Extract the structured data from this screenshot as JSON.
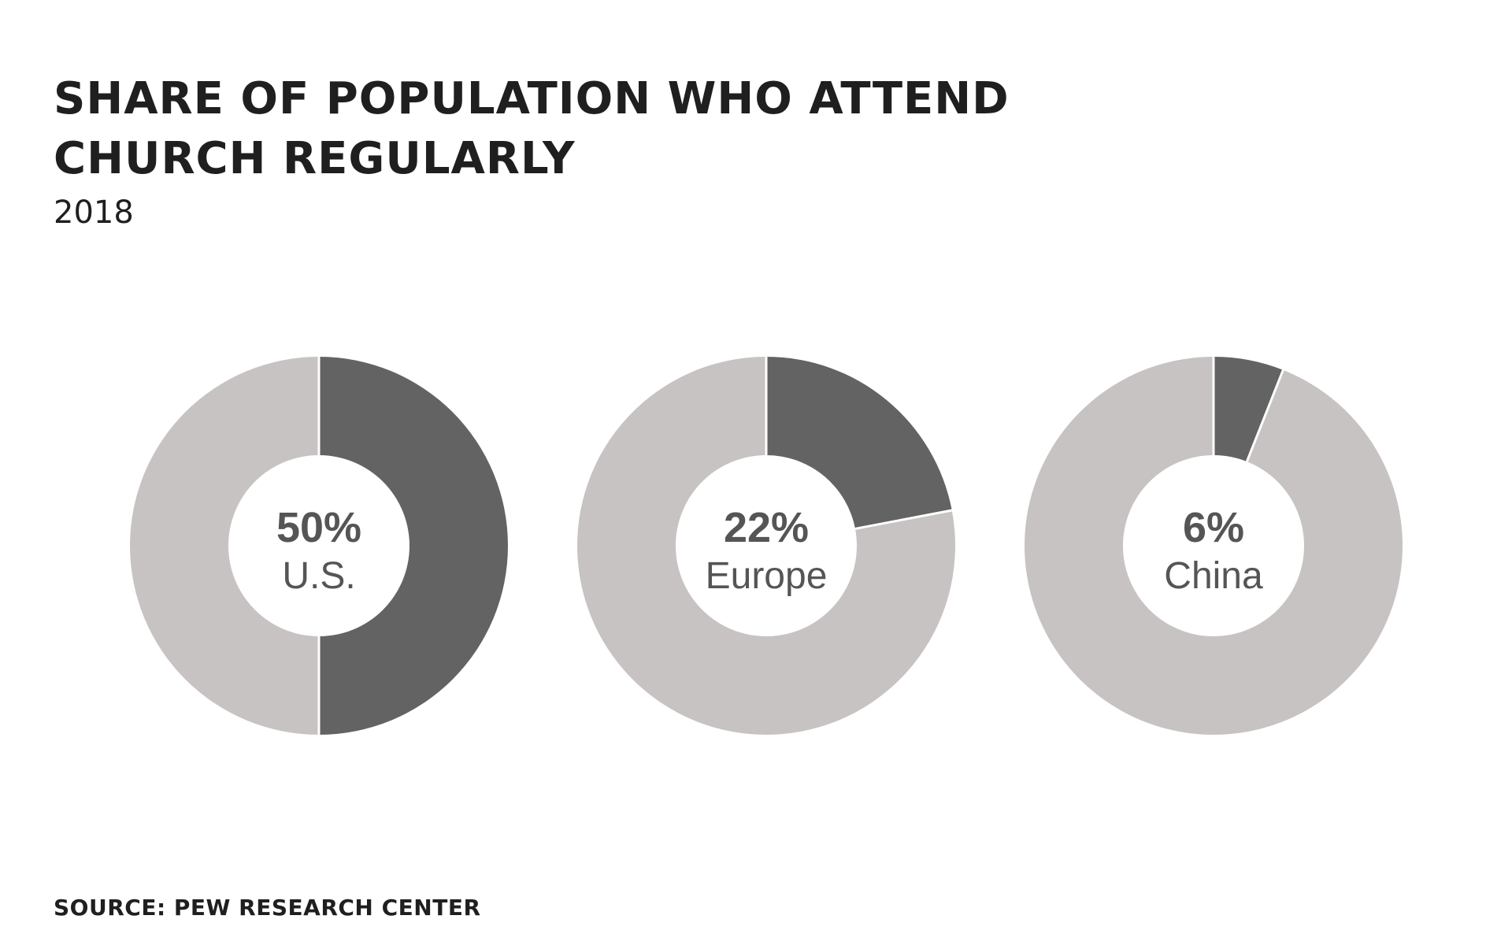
{
  "title": "SHARE OF POPULATION WHO ATTEND CHURCH REGULARLY",
  "subtitle": "2018",
  "source": "SOURCE: PEW RESEARCH CENTER",
  "colors": {
    "attend": "#636363",
    "remainder": "#c8c3c3",
    "separator": "#ffffff",
    "text": "#555555"
  },
  "chart_data": {
    "type": "pie",
    "variant": "donut",
    "title": "SHARE OF POPULATION WHO ATTEND CHURCH REGULARLY",
    "subtitle": "2018",
    "unit": "%",
    "categories": [
      "U.S.",
      "Europe",
      "China"
    ],
    "values": [
      50,
      22,
      6
    ],
    "value_labels": [
      "50%",
      "22%",
      "6%"
    ]
  }
}
